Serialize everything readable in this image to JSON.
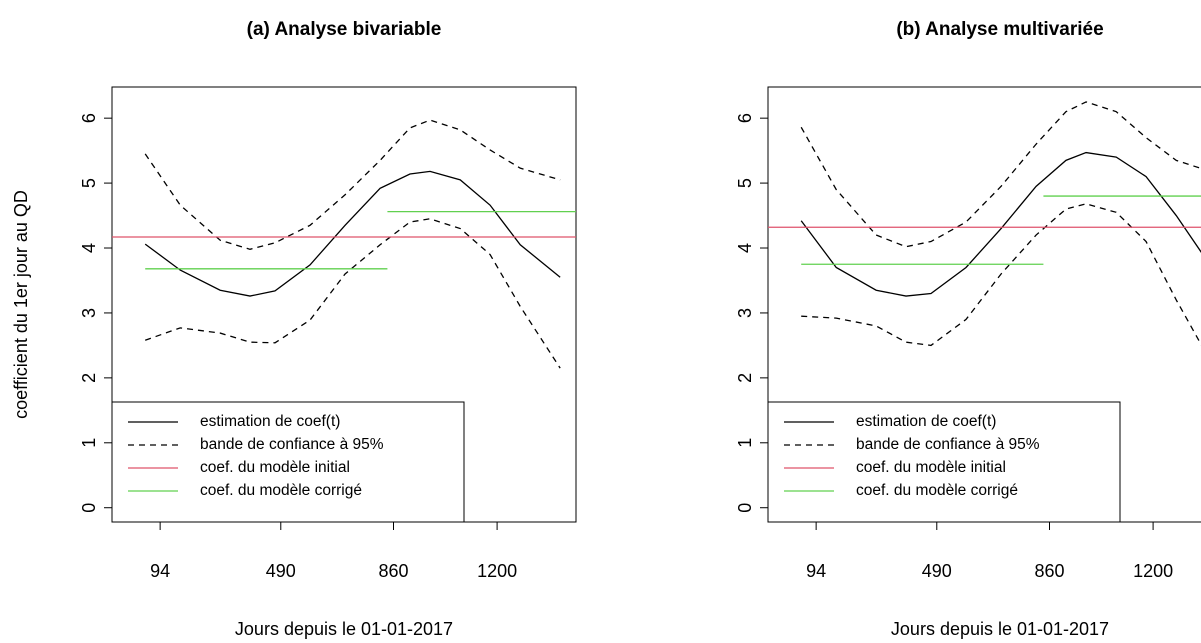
{
  "chart_data": [
    {
      "type": "line",
      "title": "(a) Analyse bivariable",
      "xlabel": "Jours depuis le 01-01-2017",
      "ylabel": "coefficient du 1er jour au QD",
      "xlim": [
        -64,
        1459
      ],
      "ylim": [
        -0.22,
        6.48
      ],
      "xticks": [
        94,
        490,
        860,
        1200
      ],
      "yticks": [
        0,
        1,
        2,
        3,
        4,
        5,
        6
      ],
      "legend": "bottomleft",
      "x": [
        45,
        160,
        291,
        389,
        471,
        586,
        701,
        816,
        914,
        980,
        1079,
        1177,
        1276,
        1407
      ],
      "series": [
        {
          "name": "estimation de coef(t)",
          "color": "#000000",
          "values": [
            4.06,
            3.66,
            3.35,
            3.26,
            3.34,
            3.74,
            4.35,
            4.92,
            5.14,
            5.18,
            5.05,
            4.66,
            4.05,
            3.55
          ]
        },
        {
          "name": "bande de confiance à 95%",
          "color": "#000000",
          "dashed": true,
          "upper": [
            5.45,
            4.66,
            4.12,
            3.98,
            4.08,
            4.35,
            4.82,
            5.35,
            5.85,
            5.97,
            5.82,
            5.51,
            5.23,
            5.05
          ],
          "lower": [
            2.58,
            2.77,
            2.69,
            2.55,
            2.54,
            2.89,
            3.6,
            4.05,
            4.4,
            4.45,
            4.3,
            3.9,
            3.1,
            2.15
          ]
        },
        {
          "name": "coef. du modèle initial",
          "color": "#df536b",
          "hline": 4.17
        },
        {
          "name": "coef. du modèle corrigé",
          "color": "#61d04f",
          "segments": [
            {
              "x": [
                45,
                840
              ],
              "value": 3.68
            },
            {
              "x": [
                840,
                1459
              ],
              "value": 4.56
            }
          ]
        }
      ]
    },
    {
      "type": "line",
      "title": "(b) Analyse multivariée",
      "xlabel": "Jours depuis le 01-01-2017",
      "xlim": [
        -64,
        1459
      ],
      "ylim": [
        -0.22,
        6.48
      ],
      "xticks": [
        94,
        490,
        860,
        1200
      ],
      "yticks": [
        0,
        1,
        2,
        3,
        4,
        5,
        6
      ],
      "legend": "bottomleft",
      "x": [
        45,
        160,
        291,
        389,
        471,
        586,
        701,
        816,
        914,
        980,
        1079,
        1177,
        1276,
        1407
      ],
      "series": [
        {
          "name": "estimation de coef(t)",
          "color": "#000000",
          "values": [
            4.42,
            3.7,
            3.35,
            3.26,
            3.3,
            3.7,
            4.3,
            4.95,
            5.35,
            5.47,
            5.4,
            5.1,
            4.5,
            3.6
          ]
        },
        {
          "name": "bande de confiance à 95%",
          "color": "#000000",
          "dashed": true,
          "upper": [
            5.86,
            4.9,
            4.2,
            4.02,
            4.1,
            4.4,
            4.95,
            5.6,
            6.1,
            6.25,
            6.1,
            5.7,
            5.35,
            5.15
          ],
          "lower": [
            2.95,
            2.92,
            2.8,
            2.55,
            2.5,
            2.9,
            3.6,
            4.2,
            4.6,
            4.68,
            4.55,
            4.1,
            3.2,
            2.1
          ]
        },
        {
          "name": "coef. du modèle initial",
          "color": "#df536b",
          "hline": 4.32
        },
        {
          "name": "coef. du modèle corrigé",
          "color": "#61d04f",
          "segments": [
            {
              "x": [
                45,
                840
              ],
              "value": 3.75
            },
            {
              "x": [
                840,
                1459
              ],
              "value": 4.8
            }
          ]
        }
      ]
    }
  ]
}
